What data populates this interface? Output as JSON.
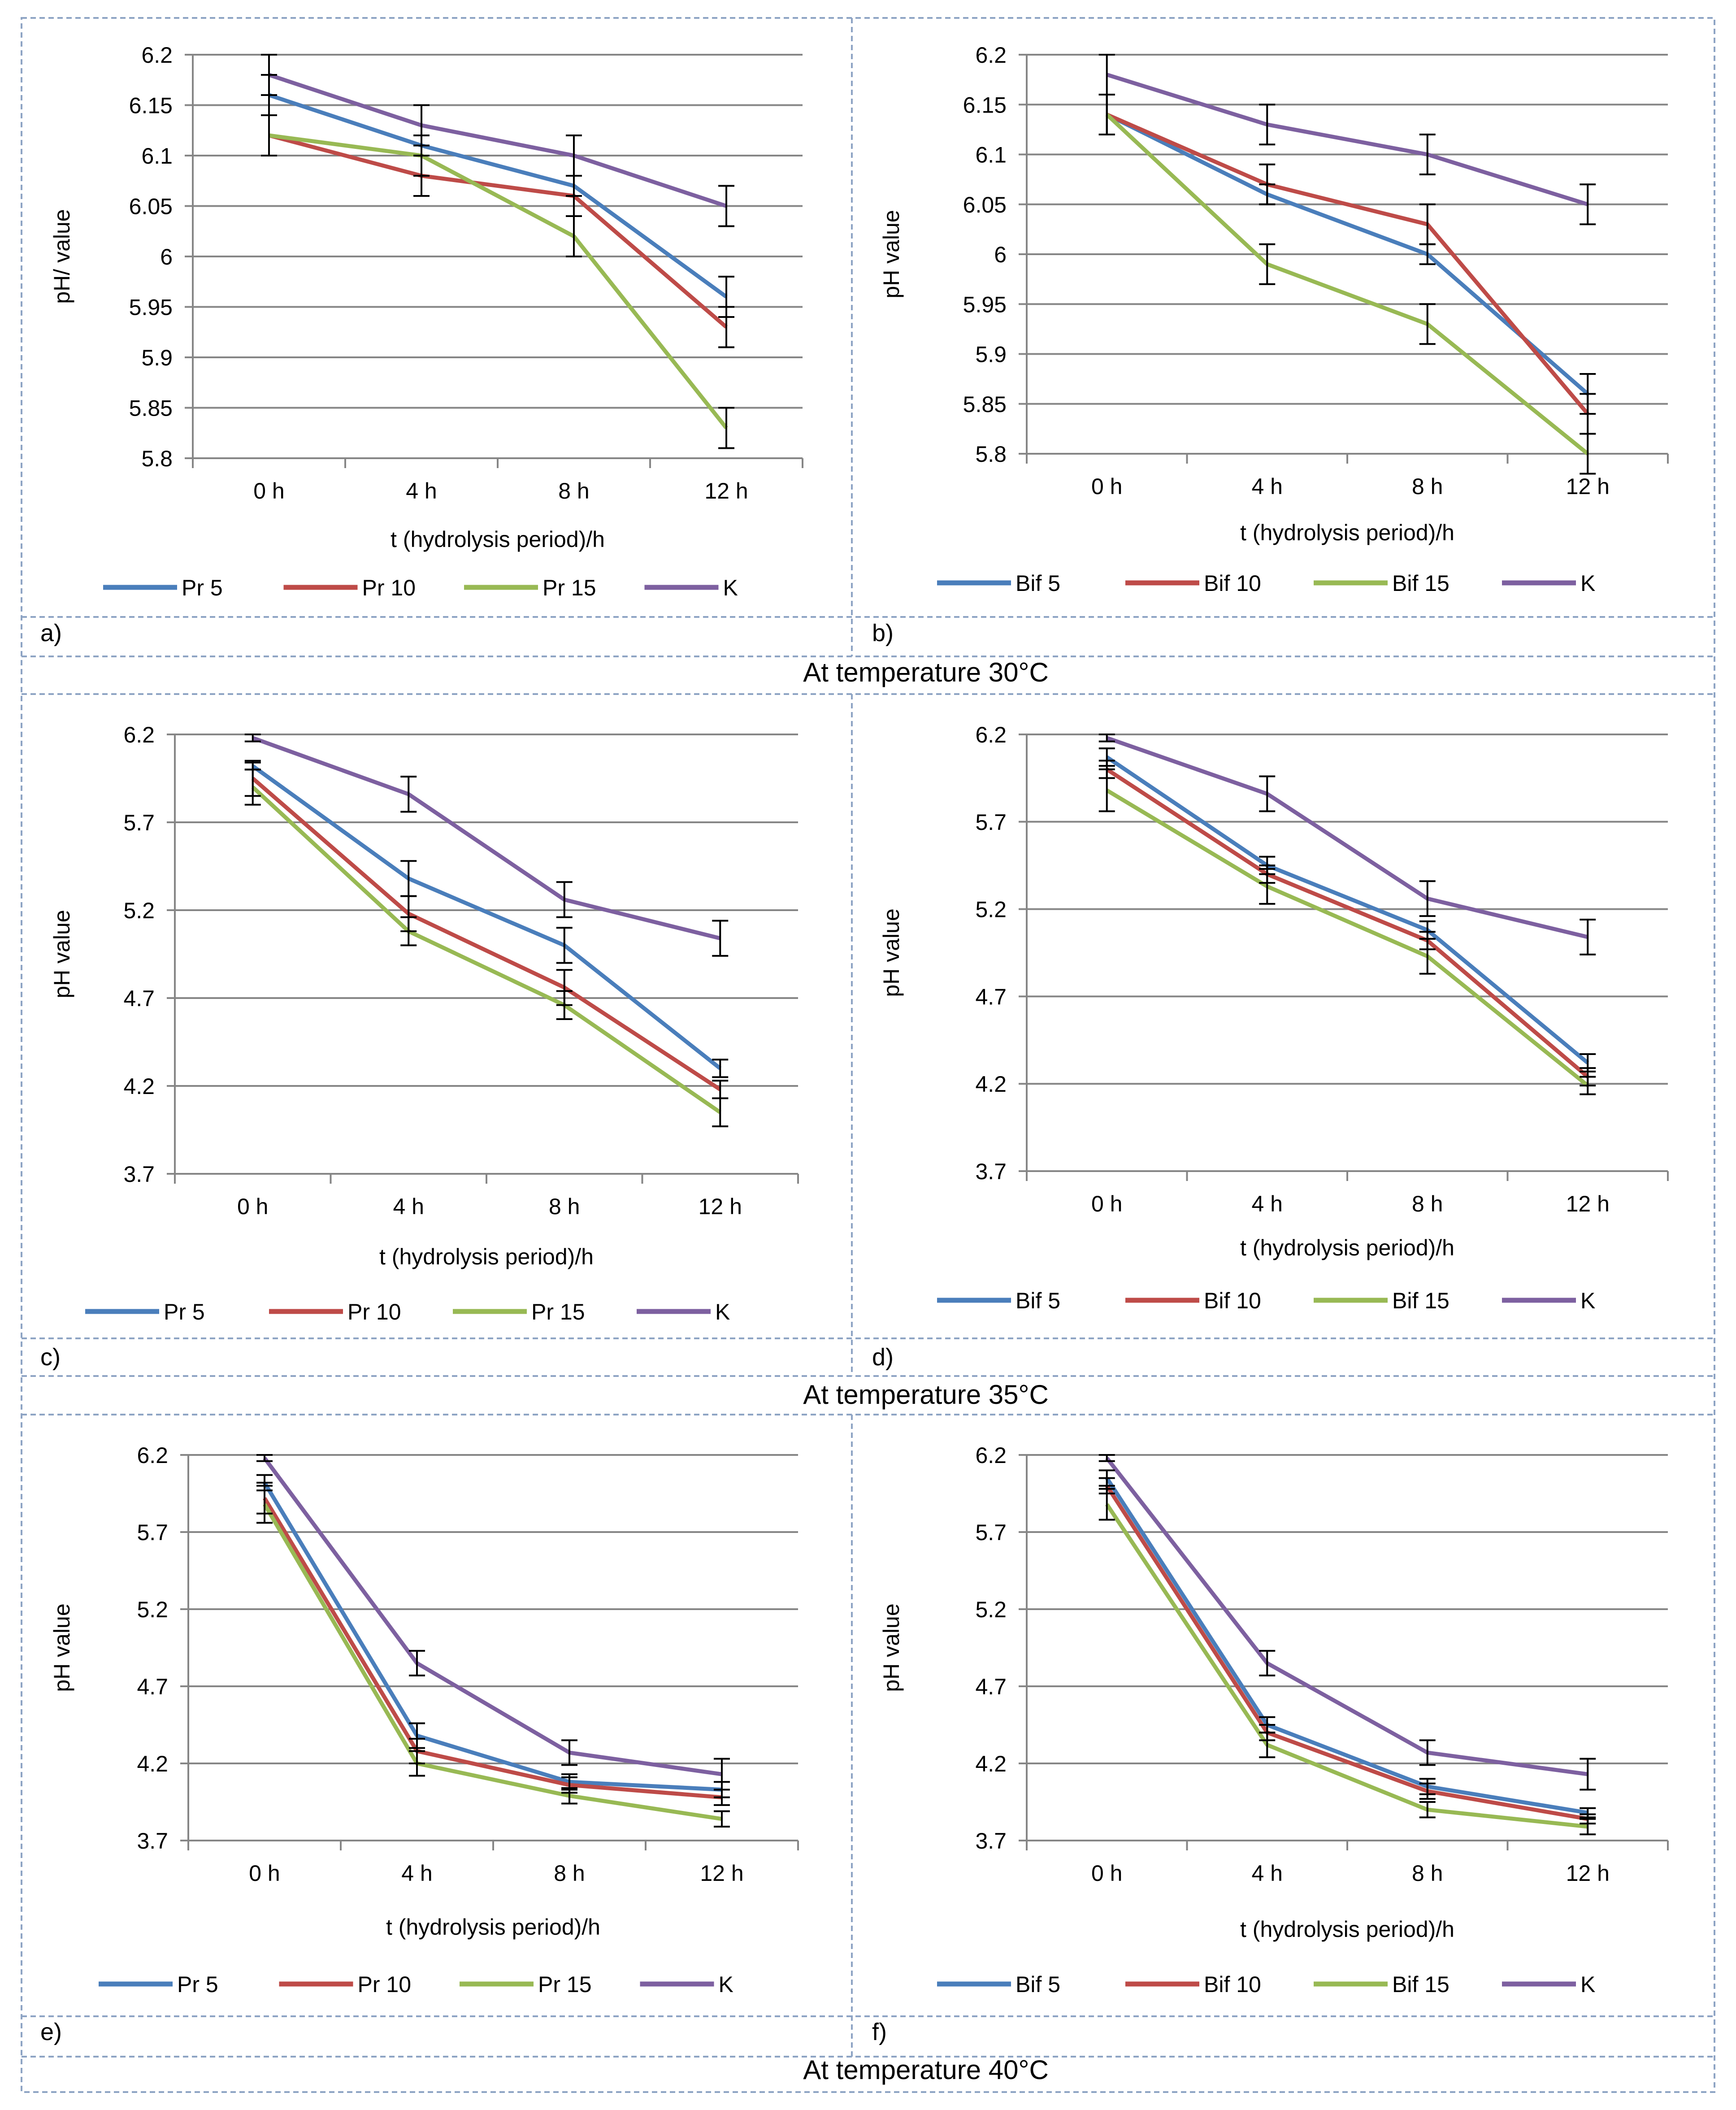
{
  "figure": {
    "temperature_labels": [
      "At temperature 30°C",
      "At temperature 35°C",
      "At temperature 40°C"
    ],
    "colors": {
      "s1": "#4a7ebb",
      "s2": "#be4b48",
      "s3": "#98b954",
      "s4": "#7d60a0",
      "grid": "#868686",
      "frame": "#8ea4c4",
      "text": "#000000"
    }
  },
  "chart_data": [
    {
      "panel": "a)",
      "type": "line",
      "categories": [
        "0 h",
        "4 h",
        "8 h",
        "12 h"
      ],
      "xlabel": "t (hydrolysis period)/h",
      "ylabel": "pH/ value",
      "ylim": [
        5.8,
        6.2
      ],
      "yticks": [
        "5.8",
        "5.85",
        "5.9",
        "5.95",
        "6",
        "6.05",
        "6.1",
        "6.15",
        "6.2"
      ],
      "legend_position": "bottom",
      "series": [
        {
          "name": "Pr 5",
          "values": [
            6.16,
            6.11,
            6.07,
            5.96
          ],
          "errors": [
            0.02,
            0.01,
            0.01,
            0.02
          ]
        },
        {
          "name": "Pr 10",
          "values": [
            6.12,
            6.08,
            6.06,
            5.93
          ],
          "errors": [
            0.02,
            0.02,
            0.02,
            0.02
          ]
        },
        {
          "name": "Pr 15",
          "values": [
            6.12,
            6.1,
            6.02,
            5.83
          ],
          "errors": [
            0.02,
            0.02,
            0.02,
            0.02
          ]
        },
        {
          "name": "K",
          "values": [
            6.18,
            6.13,
            6.1,
            6.05
          ],
          "errors": [
            0.02,
            0.02,
            0.02,
            0.02
          ]
        }
      ]
    },
    {
      "panel": "b)",
      "type": "line",
      "categories": [
        "0 h",
        "4 h",
        "8 h",
        "12 h"
      ],
      "xlabel": "t (hydrolysis period)/h",
      "ylabel": "pH value",
      "ylim": [
        5.8,
        6.2
      ],
      "yticks": [
        "5.8",
        "5.85",
        "5.9",
        "5.95",
        "6",
        "6.05",
        "6.1",
        "6.15",
        "6.2"
      ],
      "legend_position": "bottom",
      "series": [
        {
          "name": "Bif 5",
          "values": [
            6.14,
            6.06,
            6.0,
            5.86
          ],
          "errors": [
            0.02,
            0.01,
            0.01,
            0.02
          ]
        },
        {
          "name": "Bif 10",
          "values": [
            6.14,
            6.07,
            6.03,
            5.84
          ],
          "errors": [
            0.02,
            0.02,
            0.02,
            0.02
          ]
        },
        {
          "name": "Bif 15",
          "values": [
            6.14,
            5.99,
            5.93,
            5.8
          ],
          "errors": [
            0.02,
            0.02,
            0.02,
            0.02
          ]
        },
        {
          "name": "K",
          "values": [
            6.18,
            6.13,
            6.1,
            6.05
          ],
          "errors": [
            0.02,
            0.02,
            0.02,
            0.02
          ]
        }
      ]
    },
    {
      "panel": "c)",
      "type": "line",
      "categories": [
        "0 h",
        "4 h",
        "8 h",
        "12 h"
      ],
      "xlabel": "t (hydrolysis period)/h",
      "ylabel": "pH value",
      "ylim": [
        3.7,
        6.2
      ],
      "yticks": [
        "3.7",
        "4.2",
        "4.7",
        "5.2",
        "5.7",
        "6.2"
      ],
      "legend_position": "bottom",
      "series": [
        {
          "name": "Pr 5",
          "values": [
            6.02,
            5.38,
            5.0,
            4.3
          ],
          "errors": [
            0.02,
            0.1,
            0.1,
            0.05
          ]
        },
        {
          "name": "Pr 10",
          "values": [
            5.95,
            5.18,
            4.76,
            4.18
          ],
          "errors": [
            0.1,
            0.1,
            0.1,
            0.05
          ]
        },
        {
          "name": "Pr 15",
          "values": [
            5.9,
            5.08,
            4.66,
            4.05
          ],
          "errors": [
            0.1,
            0.08,
            0.08,
            0.08
          ]
        },
        {
          "name": "K",
          "values": [
            6.18,
            5.86,
            5.26,
            5.04
          ],
          "errors": [
            0.02,
            0.1,
            0.1,
            0.1
          ]
        }
      ]
    },
    {
      "panel": "d)",
      "type": "line",
      "categories": [
        "0 h",
        "4 h",
        "8 h",
        "12 h"
      ],
      "xlabel": "t (hydrolysis period)/h",
      "ylabel": "pH value",
      "ylim": [
        3.7,
        6.2
      ],
      "yticks": [
        "3.7",
        "4.2",
        "4.7",
        "5.2",
        "5.7",
        "6.2"
      ],
      "legend_position": "bottom",
      "series": [
        {
          "name": "Bif 5",
          "values": [
            6.07,
            5.45,
            5.08,
            4.32
          ],
          "errors": [
            0.05,
            0.05,
            0.05,
            0.05
          ]
        },
        {
          "name": "Bif 10",
          "values": [
            6.0,
            5.4,
            5.02,
            4.24
          ],
          "errors": [
            0.05,
            0.05,
            0.05,
            0.05
          ]
        },
        {
          "name": "Bif 15",
          "values": [
            5.88,
            5.33,
            4.93,
            4.19
          ],
          "errors": [
            0.12,
            0.1,
            0.1,
            0.05
          ]
        },
        {
          "name": "K",
          "values": [
            6.18,
            5.86,
            5.26,
            5.04
          ],
          "errors": [
            0.02,
            0.1,
            0.1,
            0.1
          ]
        }
      ]
    },
    {
      "panel": "e)",
      "type": "line",
      "categories": [
        "0 h",
        "4 h",
        "8 h",
        "12 h"
      ],
      "xlabel": "t (hydrolysis period)/h",
      "ylabel": "pH value",
      "ylim": [
        3.7,
        6.2
      ],
      "yticks": [
        "3.7",
        "4.2",
        "4.7",
        "5.2",
        "5.7",
        "6.2"
      ],
      "legend_position": "bottom",
      "series": [
        {
          "name": "Pr 5",
          "values": [
            6.02,
            4.38,
            4.08,
            4.03
          ],
          "errors": [
            0.05,
            0.08,
            0.05,
            0.05
          ]
        },
        {
          "name": "Pr 10",
          "values": [
            5.92,
            4.28,
            4.06,
            3.98
          ],
          "errors": [
            0.1,
            0.08,
            0.05,
            0.05
          ]
        },
        {
          "name": "Pr 15",
          "values": [
            5.88,
            4.2,
            3.99,
            3.84
          ],
          "errors": [
            0.12,
            0.08,
            0.05,
            0.05
          ]
        },
        {
          "name": "K",
          "values": [
            6.18,
            4.85,
            4.27,
            4.13
          ],
          "errors": [
            0.02,
            0.08,
            0.08,
            0.1
          ]
        }
      ]
    },
    {
      "panel": "f)",
      "type": "line",
      "categories": [
        "0 h",
        "4 h",
        "8 h",
        "12 h"
      ],
      "xlabel": "t (hydrolysis period)/h",
      "ylabel": "pH value",
      "ylim": [
        3.7,
        6.2
      ],
      "yticks": [
        "3.7",
        "4.2",
        "4.7",
        "5.2",
        "5.7",
        "6.2"
      ],
      "legend_position": "bottom",
      "series": [
        {
          "name": "Bif 5",
          "values": [
            6.05,
            4.45,
            4.05,
            3.88
          ],
          "errors": [
            0.05,
            0.05,
            0.05,
            0.03
          ]
        },
        {
          "name": "Bif 10",
          "values": [
            6.0,
            4.4,
            4.02,
            3.84
          ],
          "errors": [
            0.05,
            0.05,
            0.05,
            0.03
          ]
        },
        {
          "name": "Bif 15",
          "values": [
            5.88,
            4.32,
            3.9,
            3.79
          ],
          "errors": [
            0.1,
            0.08,
            0.05,
            0.05
          ]
        },
        {
          "name": "K",
          "values": [
            6.18,
            4.85,
            4.27,
            4.13
          ],
          "errors": [
            0.02,
            0.08,
            0.08,
            0.1
          ]
        }
      ]
    }
  ]
}
